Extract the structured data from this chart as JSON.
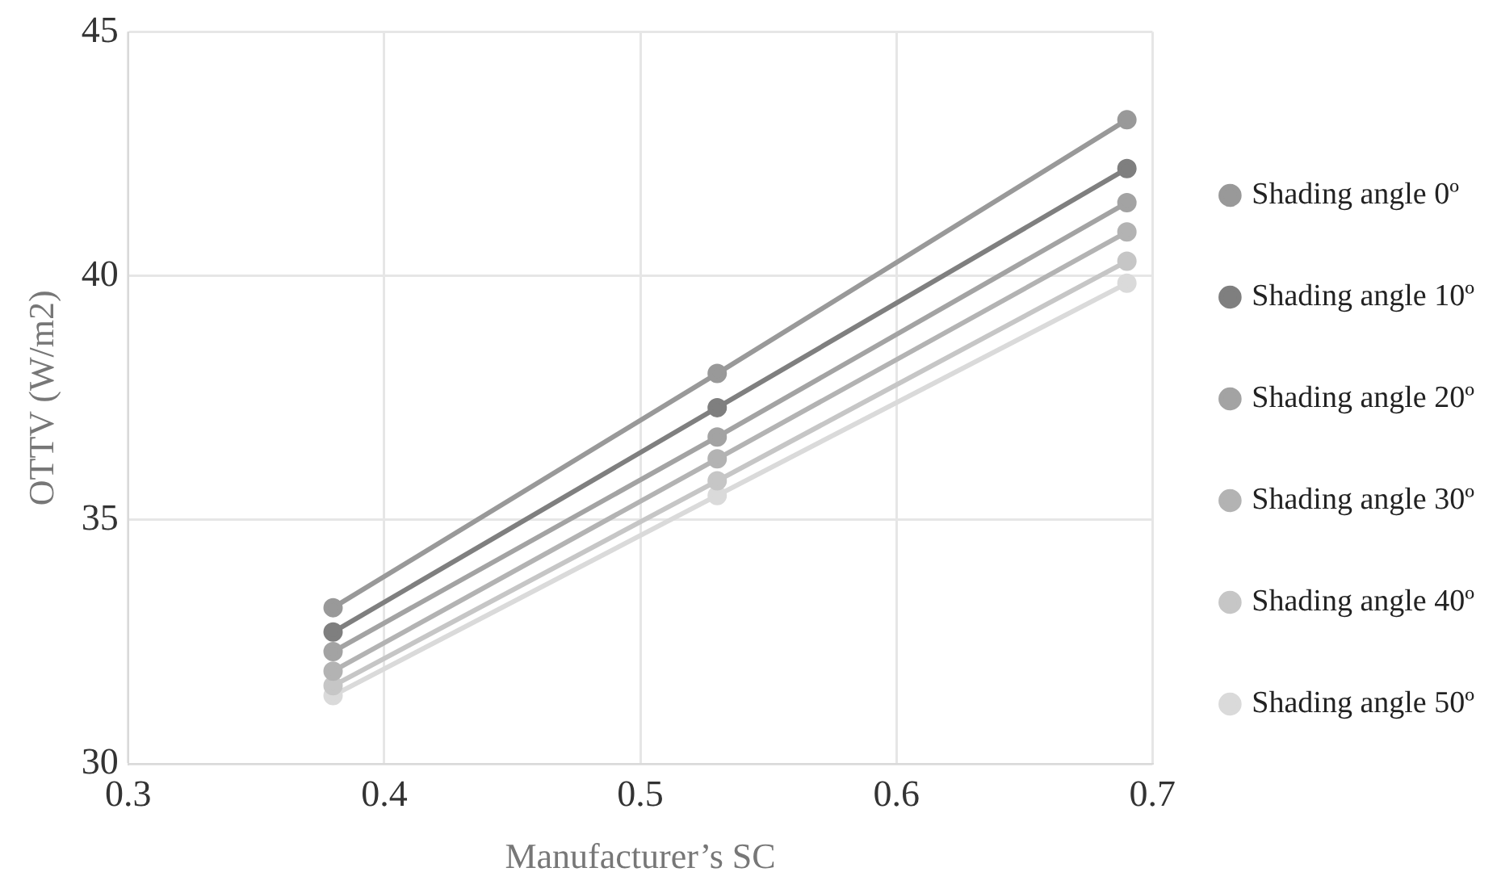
{
  "chart_data": {
    "type": "line",
    "xlabel": "Manufacturer’s SC",
    "ylabel": "OTTV (W/m2)",
    "x": [
      0.38,
      0.53,
      0.69
    ],
    "xlim": [
      0.3,
      0.7
    ],
    "xticks": [
      0.3,
      0.4,
      0.5,
      0.6,
      0.7
    ],
    "ylim": [
      30,
      45
    ],
    "yticks": [
      30,
      35,
      40,
      45
    ],
    "grid": true,
    "legend": "right",
    "marker": "circle",
    "line_style": "solid",
    "series": [
      {
        "name": "Shading angle 0º",
        "color": "#999999",
        "values": [
          33.2,
          38.0,
          43.2
        ]
      },
      {
        "name": "Shading angle 10º",
        "color": "#7f7f7f",
        "values": [
          32.7,
          37.3,
          42.2
        ]
      },
      {
        "name": "Shading angle 20º",
        "color": "#a3a3a3",
        "values": [
          32.3,
          36.7,
          41.5
        ]
      },
      {
        "name": "Shading angle 30º",
        "color": "#b3b3b3",
        "values": [
          31.9,
          36.25,
          40.9
        ]
      },
      {
        "name": "Shading angle 40º",
        "color": "#c6c6c6",
        "values": [
          31.6,
          35.8,
          40.3
        ]
      },
      {
        "name": "Shading angle 50º",
        "color": "#dadada",
        "values": [
          31.4,
          35.5,
          39.85
        ]
      }
    ]
  }
}
